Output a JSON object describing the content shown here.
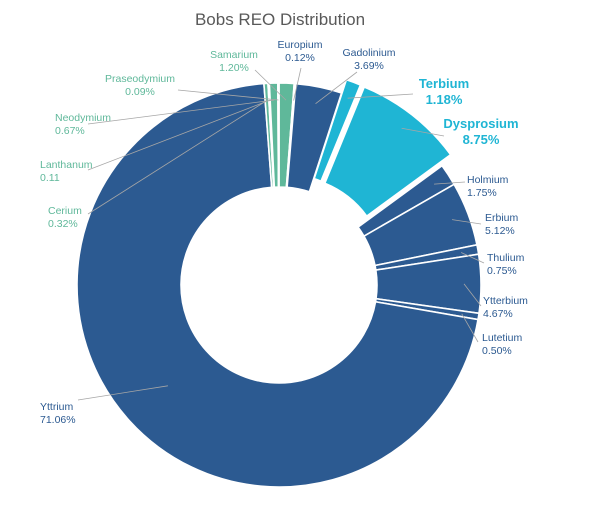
{
  "chart_data": {
    "type": "pie",
    "variant": "donut",
    "title": "Bobs REO Distribution",
    "colors": {
      "dark": "#2c5a91",
      "green": "#5fb89a",
      "cyan": "#1fb5d4"
    },
    "slices": [
      {
        "name": "Samarium",
        "value_label": "1.20%",
        "value": 1.2,
        "color": "#5fb89a",
        "label_color": "#5fb89a"
      },
      {
        "name": "Europium",
        "value_label": "0.12%",
        "value": 0.12,
        "color": "#5fb89a",
        "label_color": "#2c5a91"
      },
      {
        "name": "Gadolinium",
        "value_label": "3.69%",
        "value": 3.69,
        "color": "#2c5a91",
        "label_color": "#2c5a91"
      },
      {
        "name": "Terbium",
        "value_label": "1.18%",
        "value": 1.18,
        "color": "#1fb5d4",
        "label_color": "#1fb5d4",
        "emphasis": true
      },
      {
        "name": "Dysprosium",
        "value_label": "8.75%",
        "value": 8.75,
        "color": "#1fb5d4",
        "label_color": "#1fb5d4",
        "emphasis": true
      },
      {
        "name": "Holmium",
        "value_label": "1.75%",
        "value": 1.75,
        "color": "#2c5a91",
        "label_color": "#2c5a91"
      },
      {
        "name": "Erbium",
        "value_label": "5.12%",
        "value": 5.12,
        "color": "#2c5a91",
        "label_color": "#2c5a91"
      },
      {
        "name": "Thulium",
        "value_label": "0.75%",
        "value": 0.75,
        "color": "#2c5a91",
        "label_color": "#2c5a91"
      },
      {
        "name": "Ytterbium",
        "value_label": "4.67%",
        "value": 4.67,
        "color": "#2c5a91",
        "label_color": "#2c5a91"
      },
      {
        "name": "Lutetium",
        "value_label": "0.50%",
        "value": 0.5,
        "color": "#2c5a91",
        "label_color": "#2c5a91"
      },
      {
        "name": "Yttrium",
        "value_label": "71.06%",
        "value": 71.06,
        "color": "#2c5a91",
        "label_color": "#2c5a91"
      },
      {
        "name": "Cerium",
        "value_label": "0.32%",
        "value": 0.32,
        "color": "#5fb89a",
        "label_color": "#5fb89a"
      },
      {
        "name": "Lanthanum",
        "value_label": "0.11",
        "value": 0.11,
        "color": "#5fb89a",
        "label_color": "#5fb89a"
      },
      {
        "name": "Neodymium",
        "value_label": "0.67%",
        "value": 0.67,
        "color": "#5fb89a",
        "label_color": "#5fb89a"
      },
      {
        "name": "Praseodymium",
        "value_label": "0.09%",
        "value": 0.09,
        "color": "#5fb89a",
        "label_color": "#5fb89a"
      }
    ]
  }
}
